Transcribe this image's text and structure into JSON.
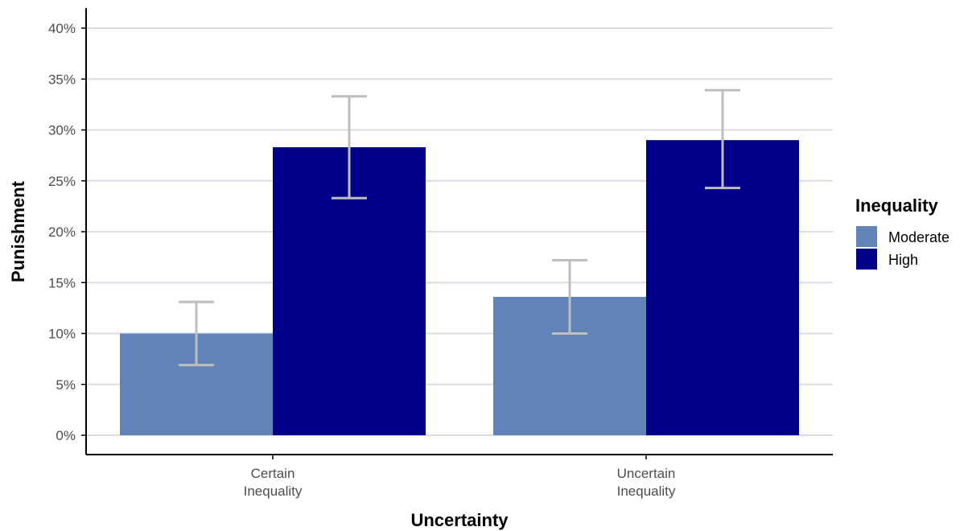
{
  "chart_data": {
    "type": "bar",
    "title": "",
    "xlabel": "Uncertainty",
    "ylabel": "Punishment",
    "categories": [
      [
        "Certain",
        "Inequality"
      ],
      [
        "Uncertain",
        "Inequality"
      ]
    ],
    "ylim": [
      0,
      0.4
    ],
    "yticks": [
      0,
      0.05,
      0.1,
      0.15,
      0.2,
      0.25,
      0.3,
      0.35,
      0.4
    ],
    "ytick_labels": [
      "0%",
      "5%",
      "10%",
      "15%",
      "20%",
      "25%",
      "30%",
      "35%",
      "40%"
    ],
    "grid": true,
    "legend": {
      "title": "Inequality",
      "placement": "right",
      "entries": [
        "Moderate",
        "High"
      ]
    },
    "series": [
      {
        "name": "Moderate",
        "color": "#6184b8",
        "values": [
          0.1,
          0.136
        ],
        "error_low": [
          0.069,
          0.1
        ],
        "error_high": [
          0.131,
          0.172
        ]
      },
      {
        "name": "High",
        "color": "#00008b",
        "values": [
          0.283,
          0.29
        ],
        "error_low": [
          0.233,
          0.243
        ],
        "error_high": [
          0.333,
          0.339
        ]
      }
    ],
    "error_bar_color": "#bebebe",
    "gridline_color": "#dcdce6",
    "axis_color": "#000000"
  }
}
